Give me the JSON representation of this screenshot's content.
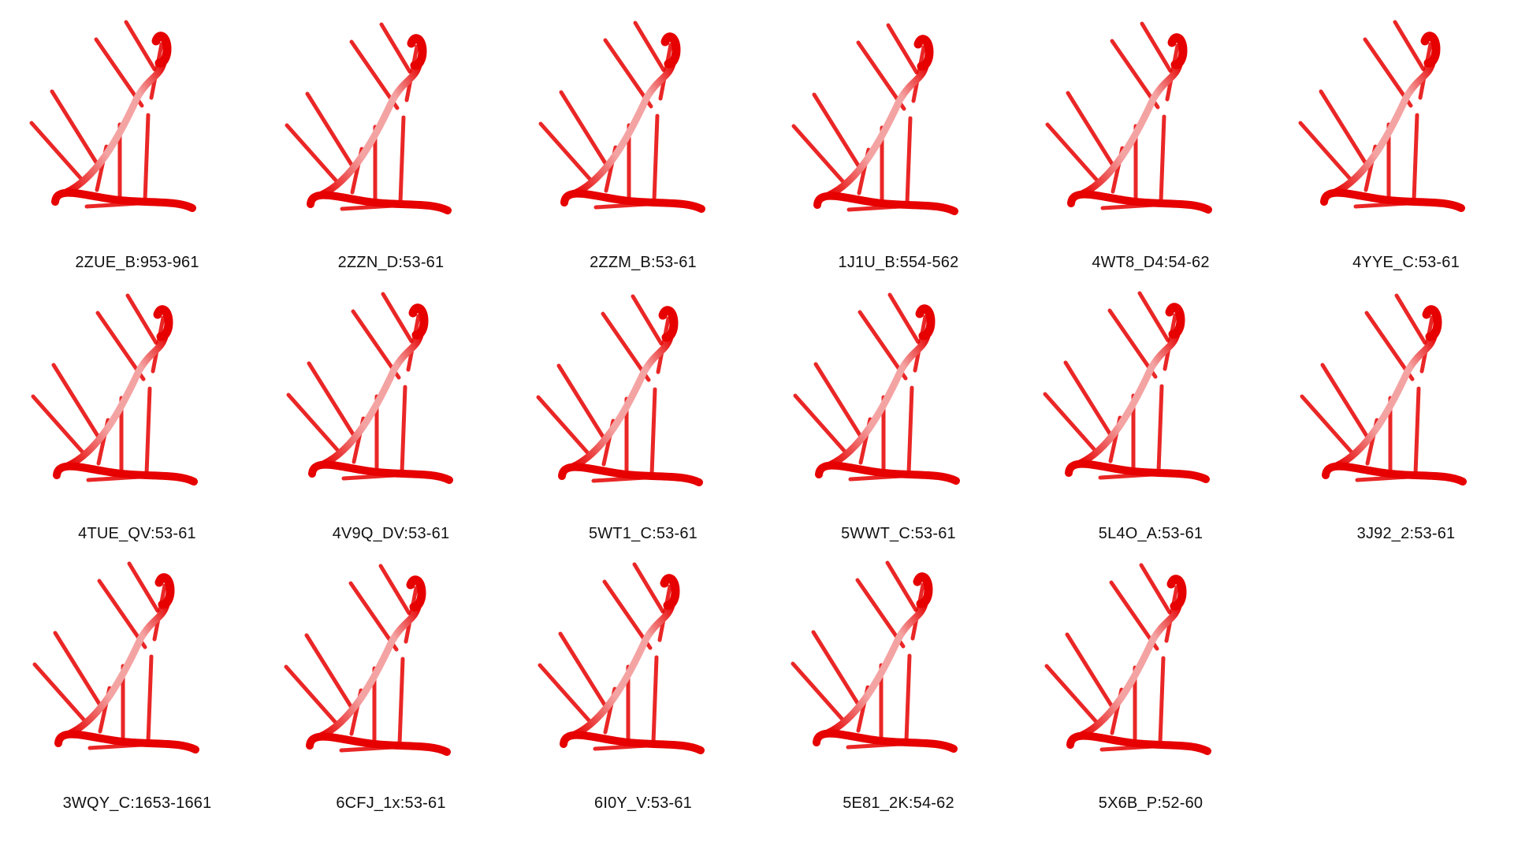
{
  "structure_color": "#e60000",
  "backbone_light_color": "#f4a3a3",
  "panels": [
    {
      "label": "2ZUE_B:953-961"
    },
    {
      "label": "2ZZN_D:53-61"
    },
    {
      "label": "2ZZM_B:53-61"
    },
    {
      "label": "1J1U_B:554-562"
    },
    {
      "label": "4WT8_D4:54-62"
    },
    {
      "label": "4YYE_C:53-61"
    },
    {
      "label": "4TUE_QV:53-61"
    },
    {
      "label": "4V9Q_DV:53-61"
    },
    {
      "label": "5WT1_C:53-61"
    },
    {
      "label": "5WWT_C:53-61"
    },
    {
      "label": "5L4O_A:53-61"
    },
    {
      "label": "3J92_2:53-61"
    },
    {
      "label": "3WQY_C:1653-1661"
    },
    {
      "label": "6CFJ_1x:53-61"
    },
    {
      "label": "6I0Y_V:53-61"
    },
    {
      "label": "5E81_2K:54-62"
    },
    {
      "label": "5X6B_P:52-60"
    }
  ]
}
